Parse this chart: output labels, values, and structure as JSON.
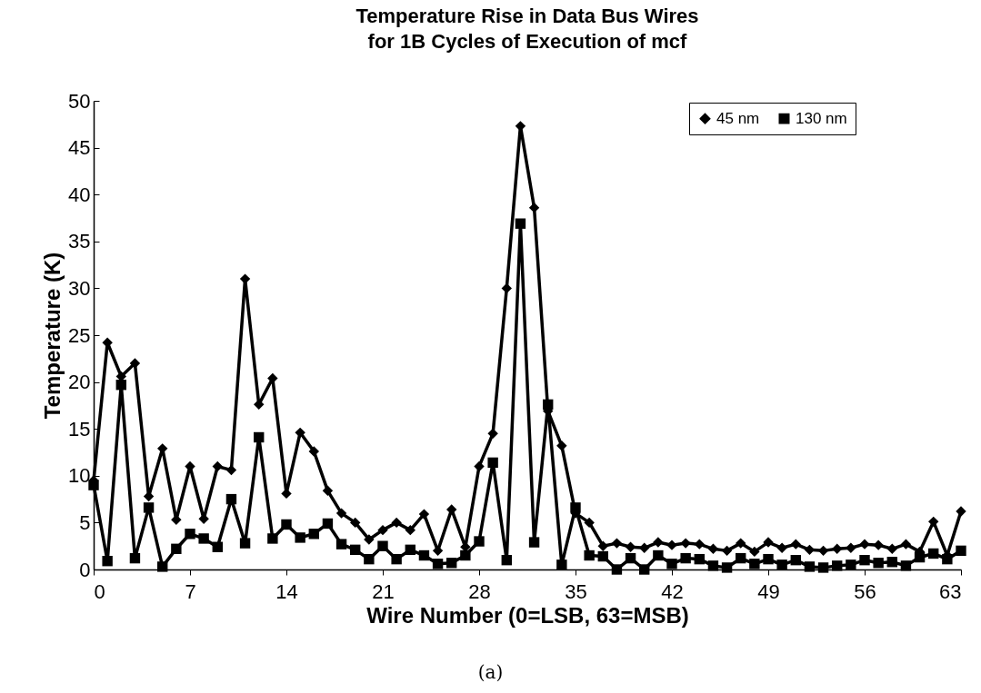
{
  "chart_data": {
    "type": "line",
    "title": "Temperature Rise in Data Bus Wires\nfor 1B Cycles of Execution of mcf",
    "xlabel": "Wire Number (0=LSB, 63=MSB)",
    "ylabel": "Temperature (K)",
    "annotations": [
      "(a)"
    ],
    "x": [
      0,
      1,
      2,
      3,
      4,
      5,
      6,
      7,
      8,
      9,
      10,
      11,
      12,
      13,
      14,
      15,
      16,
      17,
      18,
      19,
      20,
      21,
      22,
      23,
      24,
      25,
      26,
      27,
      28,
      29,
      30,
      31,
      32,
      33,
      34,
      35,
      36,
      37,
      38,
      39,
      40,
      41,
      42,
      43,
      44,
      45,
      46,
      47,
      48,
      49,
      50,
      51,
      52,
      53,
      54,
      55,
      56,
      57,
      58,
      59,
      60,
      61,
      62,
      63
    ],
    "series": [
      {
        "name": "45 nm",
        "color": "#000000",
        "marker": "diamond",
        "values": [
          9.5,
          24.2,
          20.6,
          22,
          7.8,
          12.9,
          5.3,
          11,
          5.4,
          11,
          10.6,
          31,
          17.6,
          20.4,
          8.1,
          14.6,
          12.6,
          8.4,
          6,
          5,
          3.2,
          4.2,
          5,
          4.2,
          5.9,
          2,
          6.4,
          2.4,
          11,
          14.5,
          30,
          47.3,
          38.6,
          16.9,
          13.2,
          6,
          5,
          2.5,
          2.8,
          2.4,
          2.3,
          2.9,
          2.6,
          2.8,
          2.7,
          2.2,
          2,
          2.8,
          1.9,
          2.9,
          2.3,
          2.7,
          2.1,
          2,
          2.2,
          2.3,
          2.7,
          2.6,
          2.2,
          2.7,
          1.9,
          5.1,
          1.5,
          6.2
        ]
      },
      {
        "name": "130 nm",
        "color": "#000000",
        "marker": "square",
        "values": [
          9,
          0.9,
          19.7,
          1.2,
          6.6,
          0.3,
          2.2,
          3.8,
          3.3,
          2.4,
          7.5,
          2.8,
          14.1,
          3.3,
          4.8,
          3.4,
          3.8,
          4.9,
          2.7,
          2.1,
          1.1,
          2.5,
          1.1,
          2.1,
          1.5,
          0.6,
          0.7,
          1.5,
          3,
          11.4,
          1,
          36.9,
          2.9,
          17.6,
          0.5,
          6.6,
          1.5,
          1.4,
          0,
          1.2,
          0,
          1.5,
          0.6,
          1.2,
          1.1,
          0.4,
          0.2,
          1.2,
          0.6,
          1.1,
          0.5,
          1,
          0.3,
          0.2,
          0.4,
          0.5,
          1,
          0.7,
          0.8,
          0.4,
          1.3,
          1.7,
          1.1,
          2
        ]
      }
    ],
    "xlim": [
      0,
      63
    ],
    "xticks": [
      0,
      7,
      14,
      21,
      28,
      35,
      42,
      49,
      56,
      63
    ],
    "ylim": [
      0,
      50
    ],
    "yticks": [
      0,
      5,
      10,
      15,
      20,
      25,
      30,
      35,
      40,
      45,
      50
    ],
    "grid": false,
    "legend": "top right",
    "line_style": "solid"
  }
}
